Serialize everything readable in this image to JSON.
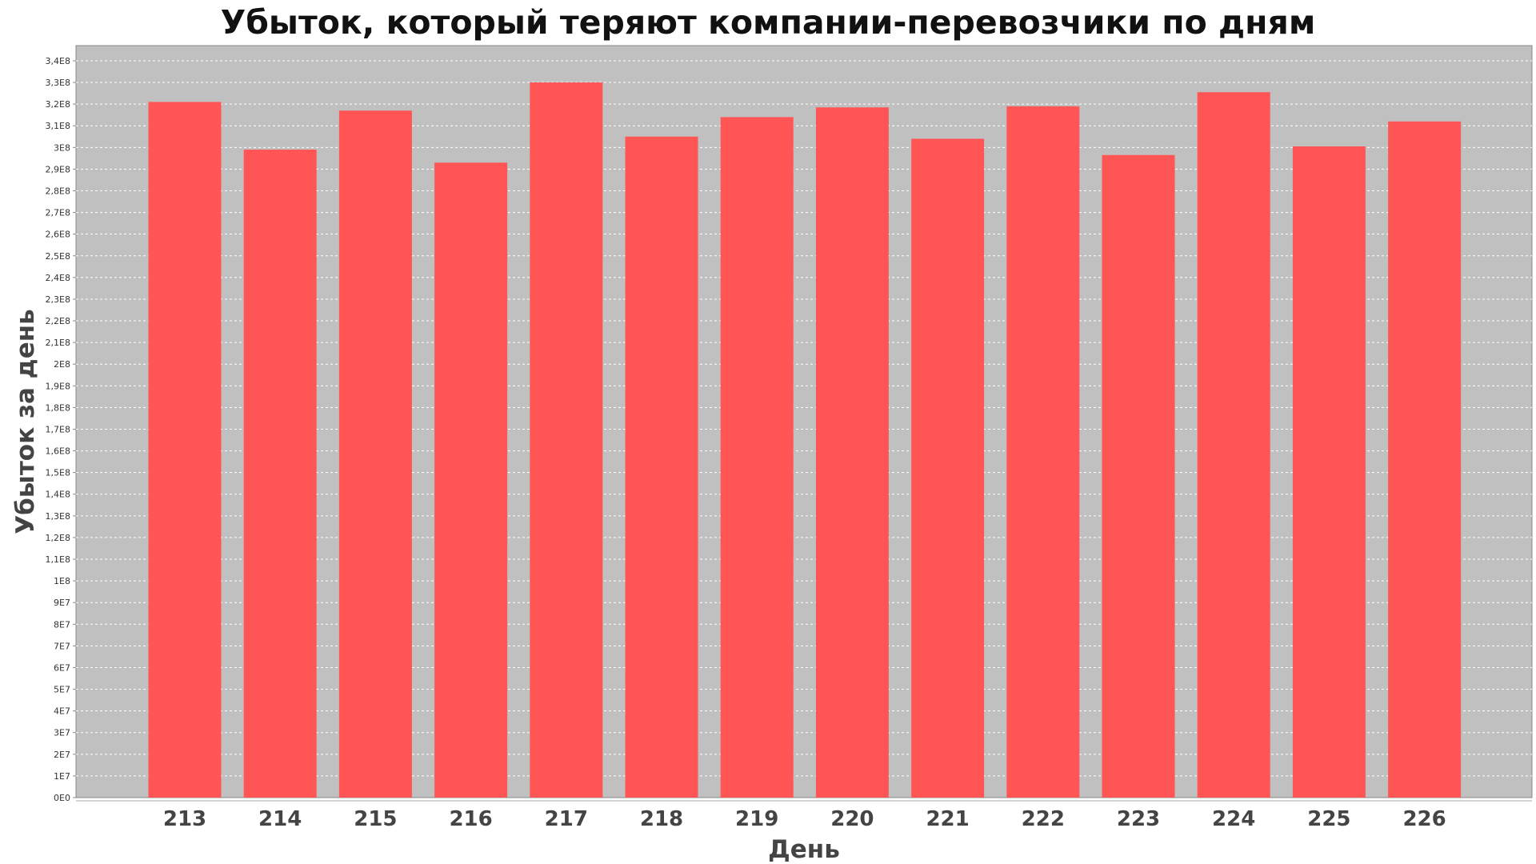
{
  "chart_data": {
    "type": "bar",
    "title": "Убыток, который теряют компании-перевозчики по дням",
    "xlabel": "День",
    "ylabel": "Убыток за день",
    "categories": [
      "213",
      "214",
      "215",
      "216",
      "217",
      "218",
      "219",
      "220",
      "221",
      "222",
      "223",
      "224",
      "225",
      "226"
    ],
    "values": [
      321000000,
      299000000,
      317000000,
      293000000,
      330000000,
      305000000,
      314000000,
      318500000,
      304000000,
      319000000,
      296500000,
      325500000,
      300500000,
      312000000
    ],
    "ylim": [
      0,
      347000000
    ],
    "yticks": [
      "0E0",
      "1E7",
      "2E7",
      "3E7",
      "4E7",
      "5E7",
      "6E7",
      "7E7",
      "8E7",
      "9E7",
      "1E8",
      "1,1E8",
      "1,2E8",
      "1,3E8",
      "1,4E8",
      "1,5E8",
      "1,6E8",
      "1,7E8",
      "1,8E8",
      "1,9E8",
      "2E8",
      "2,1E8",
      "2,2E8",
      "2,3E8",
      "2,4E8",
      "2,5E8",
      "2,6E8",
      "2,7E8",
      "2,8E8",
      "2,9E8",
      "3E8",
      "3,1E8",
      "3,2E8",
      "3,3E8",
      "3,4E8"
    ],
    "ytick_step": 10000000,
    "grid": true,
    "legend": "none",
    "bar_color": "#ff5555",
    "plot_background": "#c0c0c0"
  }
}
